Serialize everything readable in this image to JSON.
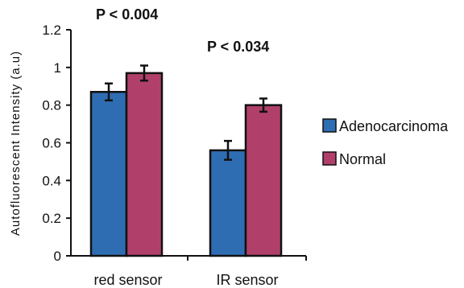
{
  "chart_data": {
    "type": "bar",
    "categories": [
      "red sensor",
      "IR sensor"
    ],
    "series": [
      {
        "name": "Adenocarcinoma",
        "values": [
          0.87,
          0.56
        ],
        "errors": [
          0.045,
          0.05
        ],
        "color": "#2f6db3"
      },
      {
        "name": "Normal",
        "values": [
          0.97,
          0.8
        ],
        "errors": [
          0.04,
          0.035
        ],
        "color": "#b0406a"
      }
    ],
    "ylabel": "Autofluorescent Intensity (a.u)",
    "ylim": [
      0,
      1.2
    ],
    "yticks": [
      "0",
      "0.2",
      "0.4",
      "0.6",
      "0.8",
      "1",
      "1.2"
    ],
    "annotations": [
      "P < 0.004",
      "P < 0.034"
    ],
    "legend_position": "right",
    "grid": false
  }
}
